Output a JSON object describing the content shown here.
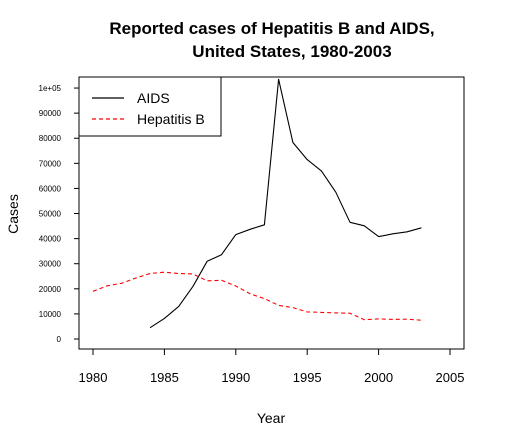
{
  "chart_data": {
    "type": "line",
    "title_lines": [
      "Reported cases of Hepatitis B and AIDS,",
      "United States, 1980-2003"
    ],
    "xlabel": "Year",
    "ylabel": "Cases",
    "xlim": [
      1980,
      2005
    ],
    "ylim": [
      0,
      104000
    ],
    "x_ticks": [
      1980,
      1985,
      1990,
      1995,
      2000,
      2005
    ],
    "y_ticks": [
      0,
      10000,
      20000,
      30000,
      40000,
      50000,
      60000,
      70000,
      80000,
      90000,
      100000
    ],
    "y_tick_labels": [
      "0",
      "10000",
      "20000",
      "30000",
      "40000",
      "50000",
      "60000",
      "70000",
      "80000",
      "90000",
      "1e+05"
    ],
    "legend_position": "top-left",
    "series": [
      {
        "name": "AIDS",
        "color": "#000000",
        "dash": "solid",
        "x": [
          1984,
          1985,
          1986,
          1987,
          1988,
          1989,
          1990,
          1991,
          1992,
          1993,
          1994,
          1995,
          1996,
          1997,
          1998,
          1999,
          2000,
          2001,
          2002,
          2003
        ],
        "values": [
          4500,
          8200,
          13000,
          21000,
          31000,
          33600,
          41600,
          43700,
          45500,
          103500,
          78300,
          71500,
          66900,
          58500,
          46500,
          45100,
          40800,
          41900,
          42700,
          44300
        ]
      },
      {
        "name": "Hepatitis B",
        "color": "#ff0000",
        "dash": "dashed",
        "x": [
          1980,
          1981,
          1982,
          1983,
          1984,
          1985,
          1986,
          1987,
          1988,
          1989,
          1990,
          1991,
          1992,
          1993,
          1994,
          1995,
          1996,
          1997,
          1998,
          1999,
          2000,
          2001,
          2002,
          2003
        ],
        "values": [
          19000,
          21200,
          22200,
          24300,
          26100,
          26600,
          26100,
          25900,
          23200,
          23400,
          21100,
          18000,
          16100,
          13400,
          12500,
          10800,
          10600,
          10400,
          10300,
          7700,
          8000,
          7800,
          7900,
          7500
        ]
      }
    ]
  }
}
